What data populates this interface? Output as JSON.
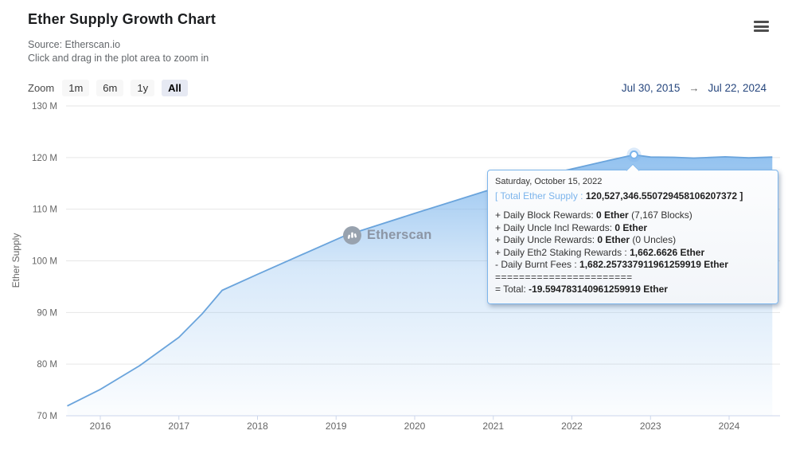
{
  "header": {
    "title": "Ether Supply Growth Chart",
    "source": "Source: Etherscan.io",
    "hint": "Click and drag in the plot area to zoom in"
  },
  "controls": {
    "zoom_label": "Zoom",
    "zoom_buttons": [
      {
        "label": "1m",
        "active": false
      },
      {
        "label": "6m",
        "active": false
      },
      {
        "label": "1y",
        "active": false
      },
      {
        "label": "All",
        "active": true
      }
    ],
    "range": {
      "from": "Jul 30, 2015",
      "arrow": "→",
      "to": "Jul 22, 2024"
    }
  },
  "watermark": {
    "text": "Etherscan"
  },
  "tooltip": {
    "date": "Saturday, October 15, 2022",
    "supply_open": "[ ",
    "supply_label": "Total Ether Supply :",
    "supply_value": "120,527,346.550729458106207372",
    "supply_close": " ]",
    "rows": [
      {
        "pre": "+ Daily Block Rewards: ",
        "bold": "0 Ether",
        "post": " (7,167 Blocks)"
      },
      {
        "pre": "+ Daily Uncle Incl Rewards: ",
        "bold": "0 Ether",
        "post": ""
      },
      {
        "pre": "+ Daily Uncle Rewards: ",
        "bold": "0 Ether",
        "post": " (0 Uncles)"
      },
      {
        "pre": "+ Daily Eth2 Staking Rewards : ",
        "bold": "1,662.6626 Ether",
        "post": ""
      },
      {
        "pre": "- Daily Burnt Fees : ",
        "bold": "1,682.257337911961259919 Ether",
        "post": ""
      }
    ],
    "separator": "=======================",
    "total_pre": "= Total: ",
    "total_value": "-19.594783140961259919 Ether"
  },
  "chart_data": {
    "type": "area",
    "title": "Ether Supply Growth Chart",
    "xlabel": "",
    "ylabel": "Ether Supply",
    "x_range": [
      2015.58,
      2024.65
    ],
    "y_range": [
      70,
      130
    ],
    "grid": "horizontal",
    "legend": "off",
    "colors": {
      "accent": "#7cb5ec",
      "line": "#6aa4dc",
      "grid": "#e6e6e6",
      "axis": "#ccd6eb",
      "tick_text": "#666666",
      "date_range_text": "#27477e"
    },
    "y_ticks": [
      {
        "value": 70,
        "label": "70 M"
      },
      {
        "value": 80,
        "label": "80 M"
      },
      {
        "value": 90,
        "label": "90 M"
      },
      {
        "value": 100,
        "label": "100 M"
      },
      {
        "value": 110,
        "label": "110 M"
      },
      {
        "value": 120,
        "label": "120 M"
      },
      {
        "value": 130,
        "label": "130 M"
      }
    ],
    "x_ticks": [
      {
        "value": 2016,
        "label": "2016"
      },
      {
        "value": 2017,
        "label": "2017"
      },
      {
        "value": 2018,
        "label": "2018"
      },
      {
        "value": 2019,
        "label": "2019"
      },
      {
        "value": 2020,
        "label": "2020"
      },
      {
        "value": 2021,
        "label": "2021"
      },
      {
        "value": 2022,
        "label": "2022"
      },
      {
        "value": 2023,
        "label": "2023"
      },
      {
        "value": 2024,
        "label": "2024"
      }
    ],
    "series": [
      {
        "name": "Total Ether Supply",
        "unit": "million ETH",
        "points": [
          [
            2015.58,
            71.9
          ],
          [
            2016.0,
            75.1
          ],
          [
            2016.5,
            79.7
          ],
          [
            2017.0,
            85.2
          ],
          [
            2017.3,
            89.8
          ],
          [
            2017.55,
            94.3
          ],
          [
            2018.0,
            97.4
          ],
          [
            2019.1,
            104.8
          ],
          [
            2020.0,
            109.2
          ],
          [
            2020.9,
            113.5
          ],
          [
            2021.6,
            116.4
          ],
          [
            2022.0,
            117.8
          ],
          [
            2022.4,
            119.2
          ],
          [
            2022.79,
            120.53
          ],
          [
            2023.0,
            120.1
          ],
          [
            2023.3,
            120.05
          ],
          [
            2023.55,
            119.9
          ],
          [
            2023.95,
            120.15
          ],
          [
            2024.25,
            119.95
          ],
          [
            2024.55,
            120.1
          ]
        ]
      }
    ],
    "marker": {
      "x": 2022.79,
      "y": 120.527,
      "date": "Saturday, October 15, 2022",
      "value_ether": "120,527,346.550729458106207372"
    }
  }
}
